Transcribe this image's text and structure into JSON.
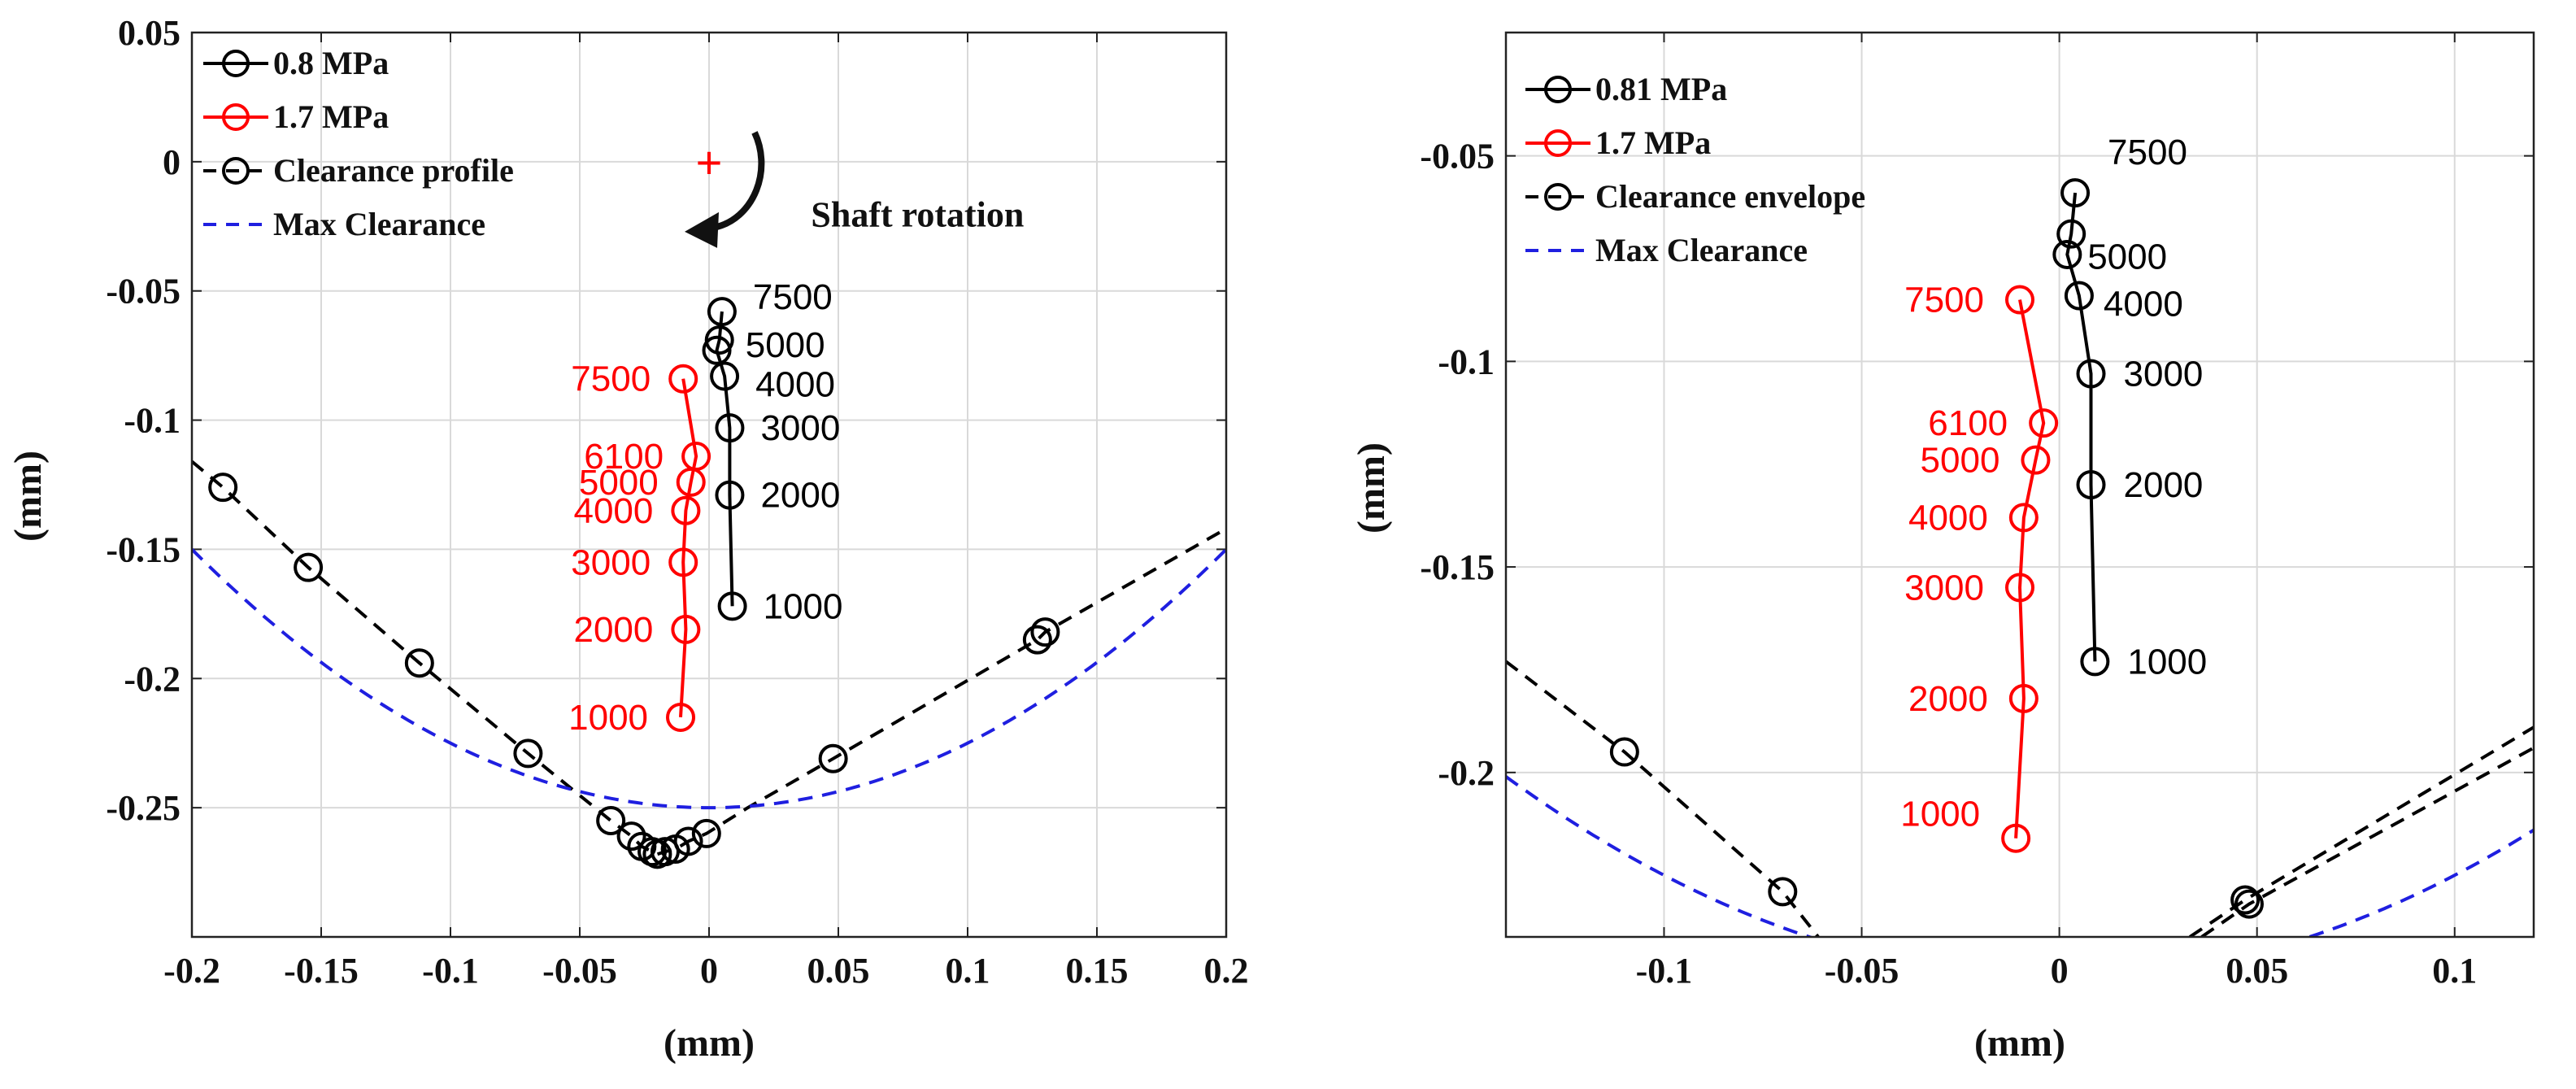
{
  "chart_data": [
    {
      "type": "line",
      "title": "",
      "xlabel": "(mm)",
      "ylabel": "(mm)",
      "xlim": [
        -0.2,
        0.2
      ],
      "ylim": [
        -0.3,
        0.05
      ],
      "xticks": [
        -0.2,
        -0.15,
        -0.1,
        -0.05,
        0,
        0.05,
        0.1,
        0.15,
        0.2
      ],
      "xtick_labels": [
        "-0.2",
        "-0.15",
        "-0.1",
        "-0.05",
        "0",
        "0.05",
        "0.1",
        "0.15",
        "0.2"
      ],
      "yticks": [
        0.05,
        0,
        -0.05,
        -0.1,
        -0.15,
        -0.2,
        -0.25
      ],
      "ytick_labels": [
        "0.05",
        "0",
        "-0.05",
        "-0.1",
        "-0.15",
        "-0.2",
        "-0.25"
      ],
      "grid": true,
      "legend_position": "top-left",
      "legend": [
        "0.8 MPa",
        "1.7 MPa",
        "Clearance profile",
        "Max Clearance"
      ],
      "annotations": [
        {
          "text": "Shaft rotation",
          "x": 0.03,
          "y": -0.015
        },
        {
          "text": "+",
          "x": 0.0,
          "y": 0.0,
          "color": "#ff0000"
        }
      ],
      "series": [
        {
          "name": "0.8 MPa",
          "color": "#000000",
          "style": "solid-circle",
          "x": [
            0.009,
            0.008,
            0.008,
            0.006,
            0.003,
            0.004,
            0.005
          ],
          "y": [
            -0.172,
            -0.129,
            -0.103,
            -0.083,
            -0.073,
            -0.069,
            -0.058
          ],
          "labels": [
            "1000",
            "2000",
            "3000",
            "4000",
            "",
            "5000",
            "7500"
          ]
        },
        {
          "name": "1.7 MPa",
          "color": "#ff0000",
          "style": "solid-circle",
          "x": [
            -0.011,
            -0.009,
            -0.01,
            -0.009,
            -0.007,
            -0.005,
            -0.01
          ],
          "y": [
            -0.215,
            -0.181,
            -0.155,
            -0.135,
            -0.124,
            -0.114,
            -0.084
          ],
          "labels": [
            "1000",
            "2000",
            "3000",
            "4000",
            "5000",
            "6100",
            "7500"
          ]
        },
        {
          "name": "Clearance profile",
          "color": "#000000",
          "style": "dashed-circle",
          "x": [
            -0.2,
            -0.188,
            -0.155,
            -0.112,
            -0.07,
            -0.038,
            -0.03,
            -0.026,
            -0.022,
            -0.02,
            -0.017,
            -0.013,
            -0.008,
            -0.001,
            0.015,
            0.048,
            0.127,
            0.13,
            0.2
          ],
          "y": [
            -0.116,
            -0.126,
            -0.157,
            -0.194,
            -0.229,
            -0.255,
            -0.261,
            -0.265,
            -0.267,
            -0.268,
            -0.267,
            -0.266,
            -0.263,
            -0.26,
            -0.25,
            -0.231,
            -0.185,
            -0.182,
            -0.142
          ],
          "markers": [
            false,
            true,
            true,
            true,
            true,
            true,
            true,
            true,
            true,
            true,
            true,
            true,
            true,
            true,
            false,
            true,
            true,
            true,
            false
          ]
        },
        {
          "name": "Max Clearance",
          "color": "#1f1fe0",
          "style": "dashed",
          "function": "-0.25+2.5*x^2"
        }
      ]
    },
    {
      "type": "line",
      "title": "",
      "xlabel": "(mm)",
      "ylabel": "(mm)",
      "xlim": [
        -0.14,
        0.12
      ],
      "ylim": [
        -0.24,
        -0.02
      ],
      "xticks": [
        -0.1,
        -0.05,
        0,
        0.05,
        0.1
      ],
      "xtick_labels": [
        "-0.1",
        "-0.05",
        "0",
        "0.05",
        "0.1"
      ],
      "yticks": [
        -0.05,
        -0.1,
        -0.15,
        -0.2
      ],
      "ytick_labels": [
        "-0.05",
        "-0.1",
        "-0.15",
        "-0.2"
      ],
      "grid": true,
      "legend_position": "top-left",
      "legend": [
        "0.81 MPa",
        "1.7 MPa",
        "Clearance envelope",
        "Max Clearance"
      ],
      "series": [
        {
          "name": "0.81 MPa",
          "color": "#000000",
          "style": "solid-circle",
          "x": [
            0.009,
            0.008,
            0.008,
            0.005,
            0.002,
            0.003,
            0.004
          ],
          "y": [
            -0.173,
            -0.13,
            -0.103,
            -0.084,
            -0.074,
            -0.069,
            -0.059
          ],
          "labels": [
            "1000",
            "2000",
            "3000",
            "4000",
            "",
            "5000",
            "7500"
          ]
        },
        {
          "name": "1.7 MPa",
          "color": "#ff0000",
          "style": "solid-circle",
          "x": [
            -0.011,
            -0.009,
            -0.01,
            -0.009,
            -0.006,
            -0.004,
            -0.01
          ],
          "y": [
            -0.216,
            -0.182,
            -0.155,
            -0.138,
            -0.124,
            -0.115,
            -0.085
          ],
          "labels": [
            "1000",
            "2000",
            "3000",
            "4000",
            "5000",
            "6100",
            "7500"
          ]
        },
        {
          "name": "Clearance envelope",
          "color": "#000000",
          "style": "dashed-circle",
          "x": [
            -0.14,
            -0.11,
            -0.07,
            -0.061
          ],
          "y": [
            -0.173,
            -0.195,
            -0.229,
            -0.24
          ],
          "markers": [
            false,
            true,
            true,
            false
          ]
        },
        {
          "name": "Clearance envelope (right)",
          "color": "#000000",
          "style": "dashed-circle",
          "x": [
            0.033,
            0.047,
            0.12
          ],
          "y": [
            -0.24,
            -0.231,
            -0.189
          ],
          "markers": [
            false,
            true,
            false
          ]
        },
        {
          "name": "Clearance envelope (right 2)",
          "color": "#000000",
          "style": "dashed-circle",
          "x": [
            0.036,
            0.048,
            0.12
          ],
          "y": [
            -0.24,
            -0.232,
            -0.194
          ],
          "markers": [
            false,
            true,
            false
          ]
        },
        {
          "name": "Max Clearance",
          "color": "#1f1fe0",
          "style": "dashed",
          "function": "-0.25+2.5*x^2"
        }
      ]
    }
  ]
}
